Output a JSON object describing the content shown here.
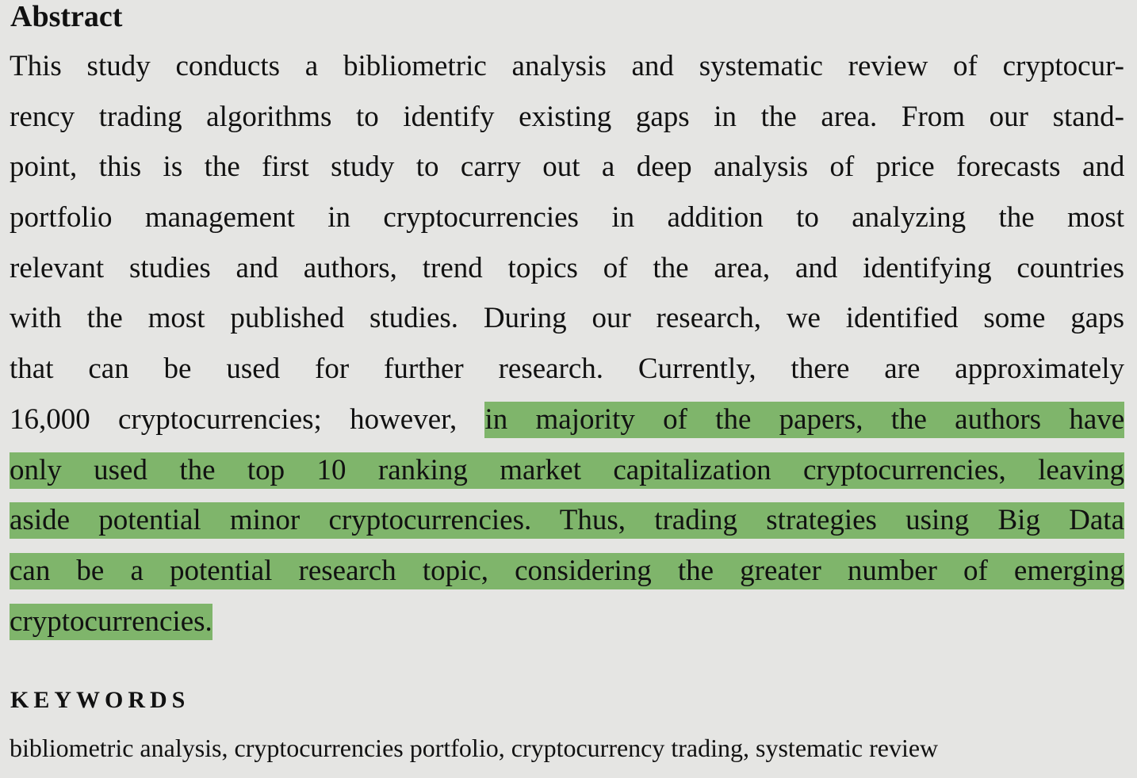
{
  "abstract": {
    "heading": "Abstract",
    "lines": [
      {
        "plain": "This study conducts a bibliometric analysis and systematic review of cryptocur-",
        "highlight": ""
      },
      {
        "plain": "rency trading algorithms to identify existing gaps in the area. From our stand-",
        "highlight": ""
      },
      {
        "plain": "point, this is the first study to carry out a deep analysis of price forecasts and",
        "highlight": ""
      },
      {
        "plain": "portfolio management in cryptocurrencies in addition to analyzing the most",
        "highlight": ""
      },
      {
        "plain": "relevant studies and authors, trend topics of the area, and identifying countries",
        "highlight": ""
      },
      {
        "plain": "with the most published studies. During our research, we identified some gaps",
        "highlight": ""
      },
      {
        "plain": "that can be used for further research. Currently, there are approximately",
        "highlight": ""
      },
      {
        "plain": "16,000 cryptocurrencies; however, ",
        "highlight": "in majority of the papers, the authors have"
      },
      {
        "plain": "",
        "highlight": "only used the top 10 ranking market capitalization cryptocurrencies, leaving"
      },
      {
        "plain": "",
        "highlight": "aside potential minor cryptocurrencies. Thus, trading strategies using Big Data"
      },
      {
        "plain": "",
        "highlight": "can be a potential research topic, considering the greater number of emerging"
      },
      {
        "plain": "",
        "highlight": "cryptocurrencies."
      }
    ]
  },
  "keywords": {
    "heading": "KEYWORDS",
    "list": "bibliometric analysis, cryptocurrencies portfolio, cryptocurrency trading, systematic review"
  },
  "colors": {
    "background": "#e5e5e3",
    "highlight": "#7fb56b",
    "text": "#111111"
  }
}
